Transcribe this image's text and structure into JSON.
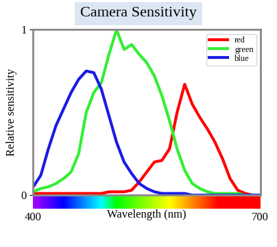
{
  "chart_data": {
    "type": "line",
    "title": "Camera Sensitivity",
    "x_label": "Wavelength (nm)",
    "y_label": "Relative sensitivity",
    "x": [
      400,
      410,
      420,
      430,
      440,
      450,
      460,
      470,
      480,
      490,
      500,
      510,
      520,
      530,
      540,
      550,
      560,
      570,
      580,
      590,
      600,
      610,
      620,
      630,
      640,
      650,
      660,
      670,
      680,
      690,
      700
    ],
    "series": [
      {
        "name": "red",
        "color": "#ff0000",
        "values": [
          0.01,
          0.01,
          0.01,
          0.01,
          0.01,
          0.01,
          0.01,
          0.01,
          0.01,
          0.01,
          0.02,
          0.02,
          0.02,
          0.03,
          0.08,
          0.14,
          0.2,
          0.21,
          0.28,
          0.5,
          0.67,
          0.55,
          0.47,
          0.4,
          0.32,
          0.22,
          0.1,
          0.03,
          0.01,
          0.0,
          0.0
        ]
      },
      {
        "name": "green",
        "color": "#33ee33",
        "values": [
          0.02,
          0.04,
          0.05,
          0.07,
          0.1,
          0.14,
          0.25,
          0.5,
          0.62,
          0.68,
          0.85,
          1.0,
          0.88,
          0.91,
          0.85,
          0.8,
          0.72,
          0.6,
          0.45,
          0.28,
          0.15,
          0.07,
          0.04,
          0.02,
          0.01,
          0.01,
          0.01,
          0.01,
          0.0,
          0.0,
          0.0
        ]
      },
      {
        "name": "blue",
        "color": "#1a1ae6",
        "values": [
          0.05,
          0.12,
          0.28,
          0.42,
          0.52,
          0.62,
          0.7,
          0.75,
          0.74,
          0.64,
          0.48,
          0.32,
          0.2,
          0.13,
          0.07,
          0.04,
          0.02,
          0.01,
          0.01,
          0.01,
          0.01,
          0.0,
          0.0,
          0.0,
          0.0,
          0.0,
          0.0,
          0.0,
          0.0,
          0.0,
          0.0
        ]
      }
    ],
    "xlim": [
      400,
      700
    ],
    "xticks": [
      400,
      700
    ],
    "ylim": [
      0,
      1
    ],
    "yticks": [
      0,
      1
    ],
    "legend": "upper right"
  }
}
